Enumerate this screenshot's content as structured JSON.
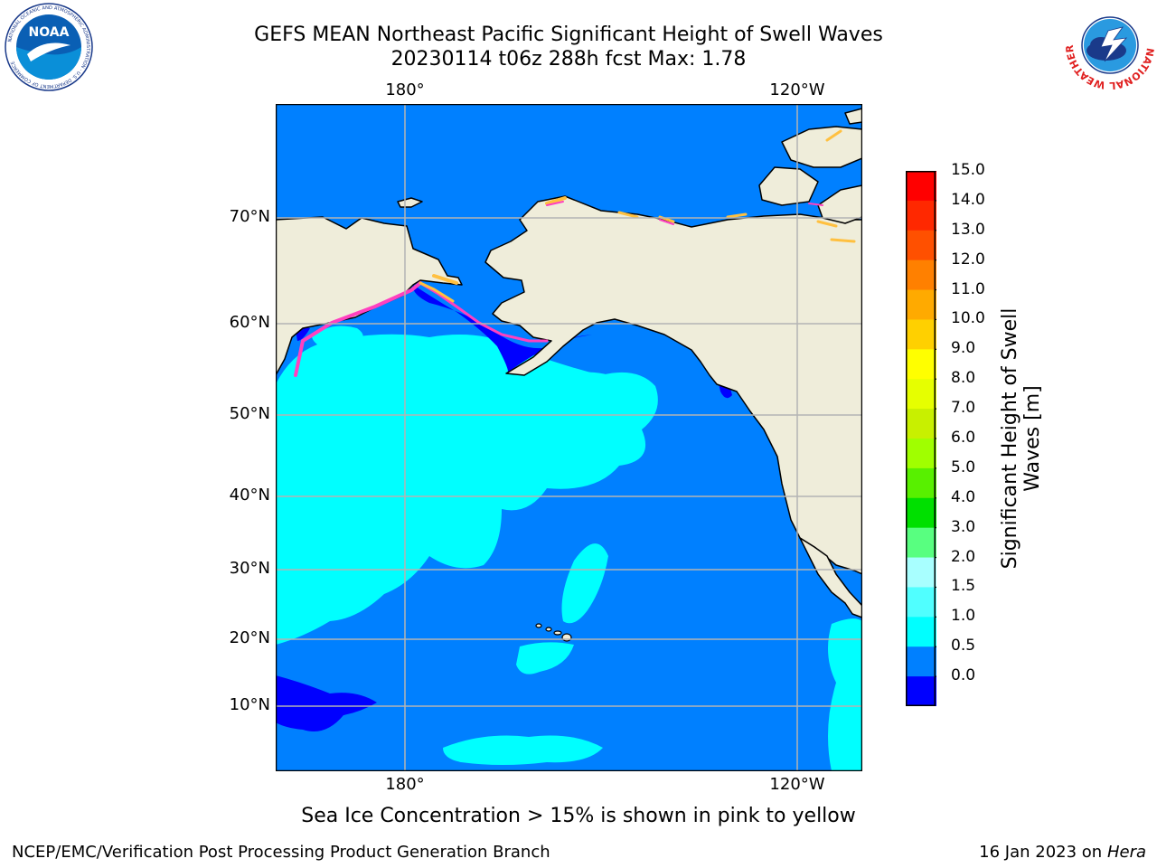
{
  "title": {
    "line1": "GEFS MEAN Northeast Pacific Significant Height of Swell Waves",
    "line2": "20230114 t06z 288h fcst   Max: 1.78"
  },
  "map": {
    "lon_labels_top": [
      "180°",
      "120°W"
    ],
    "lon_labels_bottom": [
      "180°",
      "120°W"
    ],
    "lat_labels": [
      "70°N",
      "60°N",
      "50°N",
      "40°N",
      "30°N",
      "20°N",
      "10°N"
    ],
    "colors": {
      "land": "#efedda",
      "coast": "#000000",
      "grid": "#b4b4b4",
      "ocean_base": "#0080ff",
      "swell_cyan": "#00ffff",
      "swell_dark": "#0000ff",
      "ice_pink": "#ff40c0",
      "ice_yellow": "#ffc040"
    }
  },
  "colorbar": {
    "title_line1": "Significant Height of Swell",
    "title_line2": "Waves [m]",
    "ticks": [
      "15.0",
      "14.0",
      "13.0",
      "12.0",
      "11.0",
      "10.0",
      "9.0",
      "8.0",
      "7.0",
      "6.0",
      "5.0",
      "4.0",
      "3.0",
      "2.0",
      "1.5",
      "1.0",
      "0.5",
      "0.0"
    ],
    "colors": [
      "#ff0000",
      "#ff2800",
      "#ff5000",
      "#ff8000",
      "#ffaa00",
      "#ffd000",
      "#ffff00",
      "#e6ff00",
      "#c8f000",
      "#a0ff00",
      "#58f000",
      "#00e000",
      "#58ff80",
      "#a8ffff",
      "#50ffff",
      "#00ffff",
      "#0080ff",
      "#0000ff"
    ]
  },
  "logos": {
    "left": {
      "text": "NOAA",
      "ring_text": "NATIONAL OCEANIC AND ATMOSPHERIC ADMINISTRATION · U.S. DEPARTMENT OF COMMERCE"
    },
    "right": {
      "ring_text": "NATIONAL WEATHER SERVICE"
    }
  },
  "note": "Sea Ice Concentration > 15% is shown in pink to yellow",
  "footer": {
    "credit": "NCEP/EMC/Verification Post Processing Product Generation Branch",
    "date": "16 Jan 2023 on",
    "host": "Hera"
  }
}
